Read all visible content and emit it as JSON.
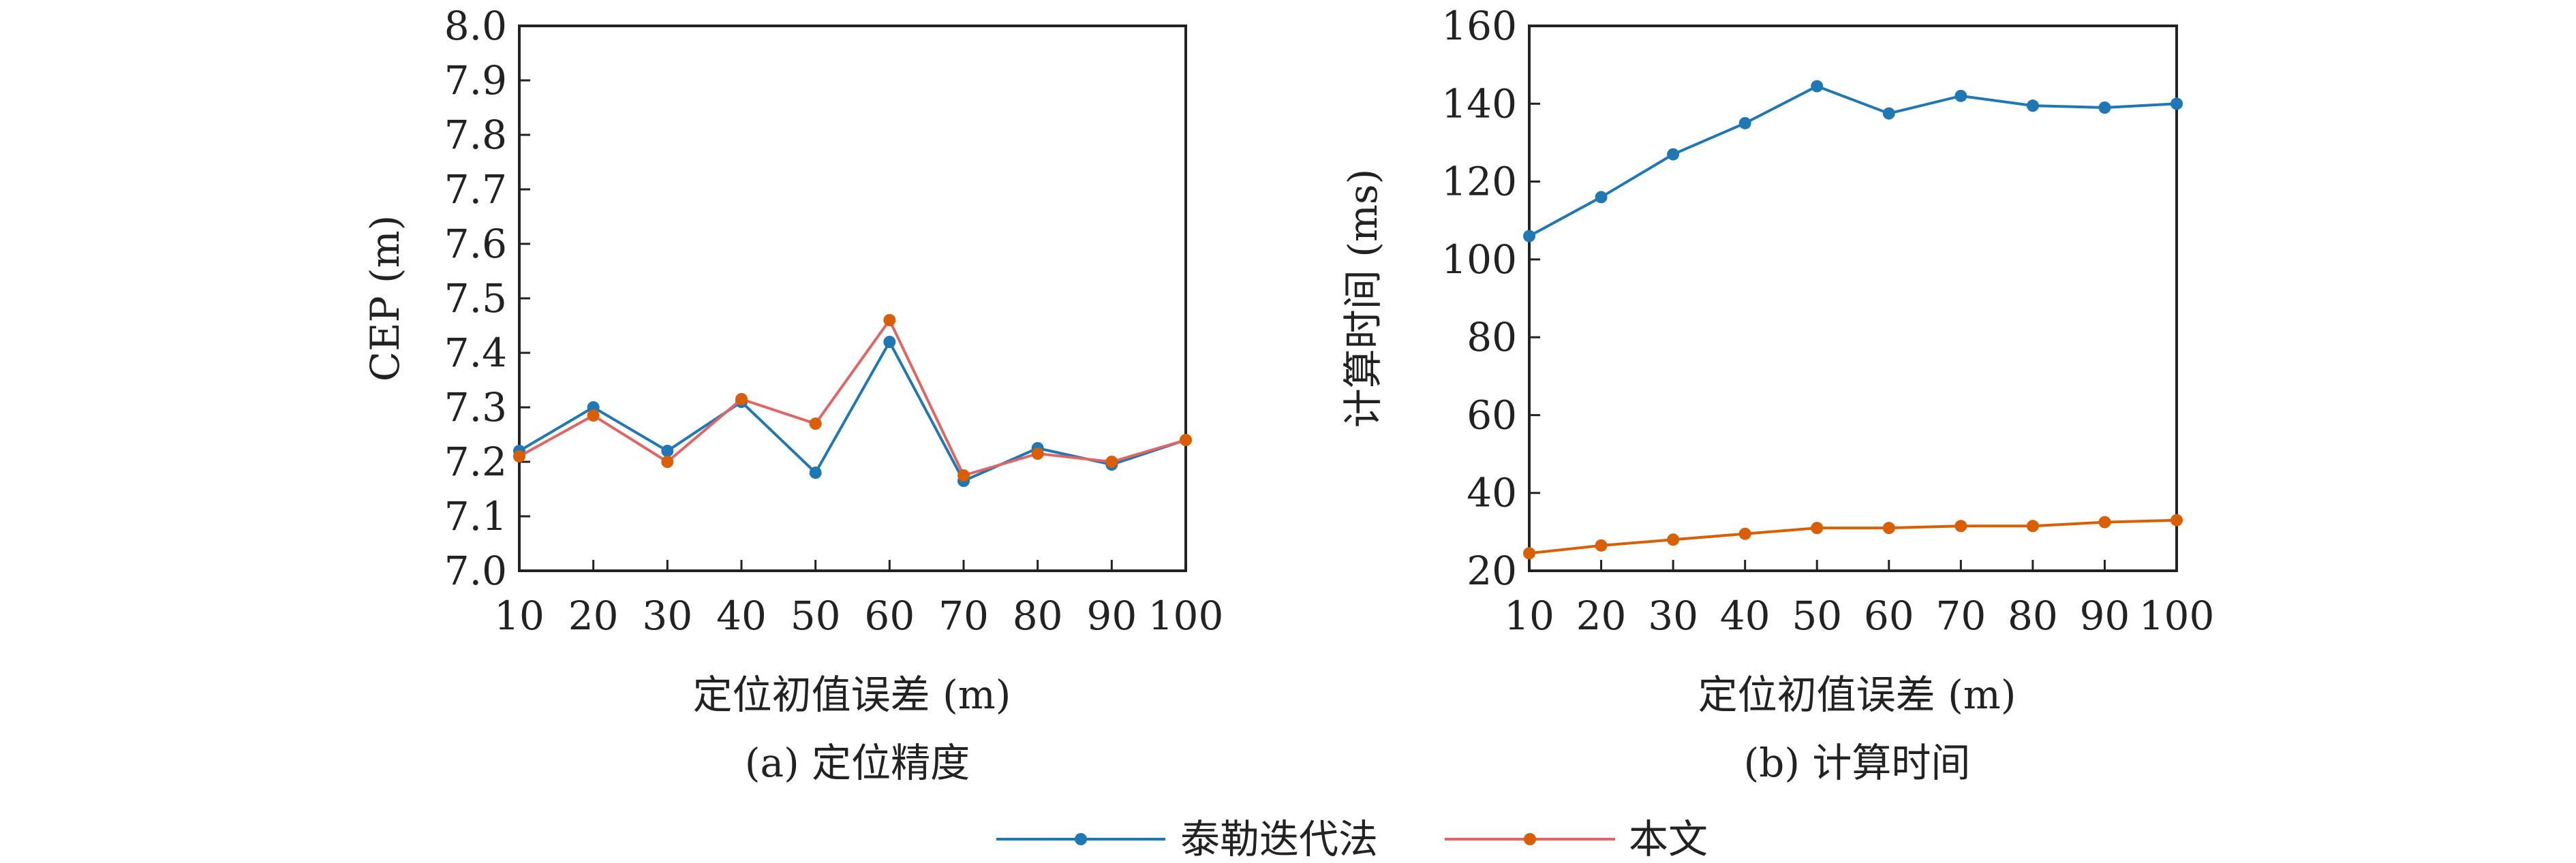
{
  "legend": {
    "series": [
      {
        "name": "泰勒迭代法",
        "color": "#1f77b4"
      },
      {
        "name": "本文",
        "color": "#e06666"
      }
    ]
  },
  "chart_data": [
    {
      "type": "line",
      "caption": "(a) 定位精度",
      "xlabel": "定位初值误差 (m)",
      "ylabel": "CEP (m)",
      "x": [
        10,
        20,
        30,
        40,
        50,
        60,
        70,
        80,
        90,
        100
      ],
      "x_tick_labels": [
        "10",
        "20",
        "30",
        "40",
        "50",
        "60",
        "70",
        "80",
        "90",
        "100"
      ],
      "xlim": [
        10,
        100
      ],
      "ylim": [
        7.0,
        8.0
      ],
      "y_ticks": [
        7.0,
        7.1,
        7.2,
        7.3,
        7.4,
        7.5,
        7.6,
        7.7,
        7.8,
        7.9,
        8.0
      ],
      "y_tick_labels": [
        "7.0",
        "7.1",
        "7.2",
        "7.3",
        "7.4",
        "7.5",
        "7.6",
        "7.7",
        "7.8",
        "7.9",
        "8.0"
      ],
      "grid": false,
      "series": [
        {
          "name": "泰勒迭代法",
          "color": "#1f77b4",
          "marker_color": "#1f77b4",
          "values": [
            7.22,
            7.3,
            7.22,
            7.31,
            7.18,
            7.42,
            7.165,
            7.225,
            7.195,
            7.24
          ]
        },
        {
          "name": "本文",
          "color": "#e06666",
          "marker_color": "#d95f02",
          "values": [
            7.21,
            7.285,
            7.2,
            7.315,
            7.27,
            7.46,
            7.175,
            7.215,
            7.2,
            7.24
          ]
        }
      ]
    },
    {
      "type": "line",
      "caption": "(b) 计算时间",
      "xlabel": "定位初值误差 (m)",
      "ylabel": "计算时间 (ms)",
      "x": [
        10,
        20,
        30,
        40,
        50,
        60,
        70,
        80,
        90,
        100
      ],
      "x_tick_labels": [
        "10",
        "20",
        "30",
        "40",
        "50",
        "60",
        "70",
        "80",
        "90",
        "100"
      ],
      "xlim": [
        10,
        100
      ],
      "ylim": [
        20,
        160
      ],
      "y_ticks": [
        20,
        40,
        60,
        80,
        100,
        120,
        140,
        160
      ],
      "y_tick_labels": [
        "20",
        "40",
        "60",
        "80",
        "100",
        "120",
        "140",
        "160"
      ],
      "grid": false,
      "series": [
        {
          "name": "泰勒迭代法",
          "color": "#1f77b4",
          "marker_color": "#1f77b4",
          "values": [
            106,
            116,
            127,
            135,
            144.5,
            137.5,
            142,
            139.5,
            139,
            140
          ]
        },
        {
          "name": "本文",
          "color": "#d95f02",
          "marker_color": "#d95f02",
          "values": [
            24.5,
            26.5,
            28,
            29.5,
            31,
            31,
            31.5,
            31.5,
            32.5,
            33
          ]
        }
      ]
    }
  ]
}
